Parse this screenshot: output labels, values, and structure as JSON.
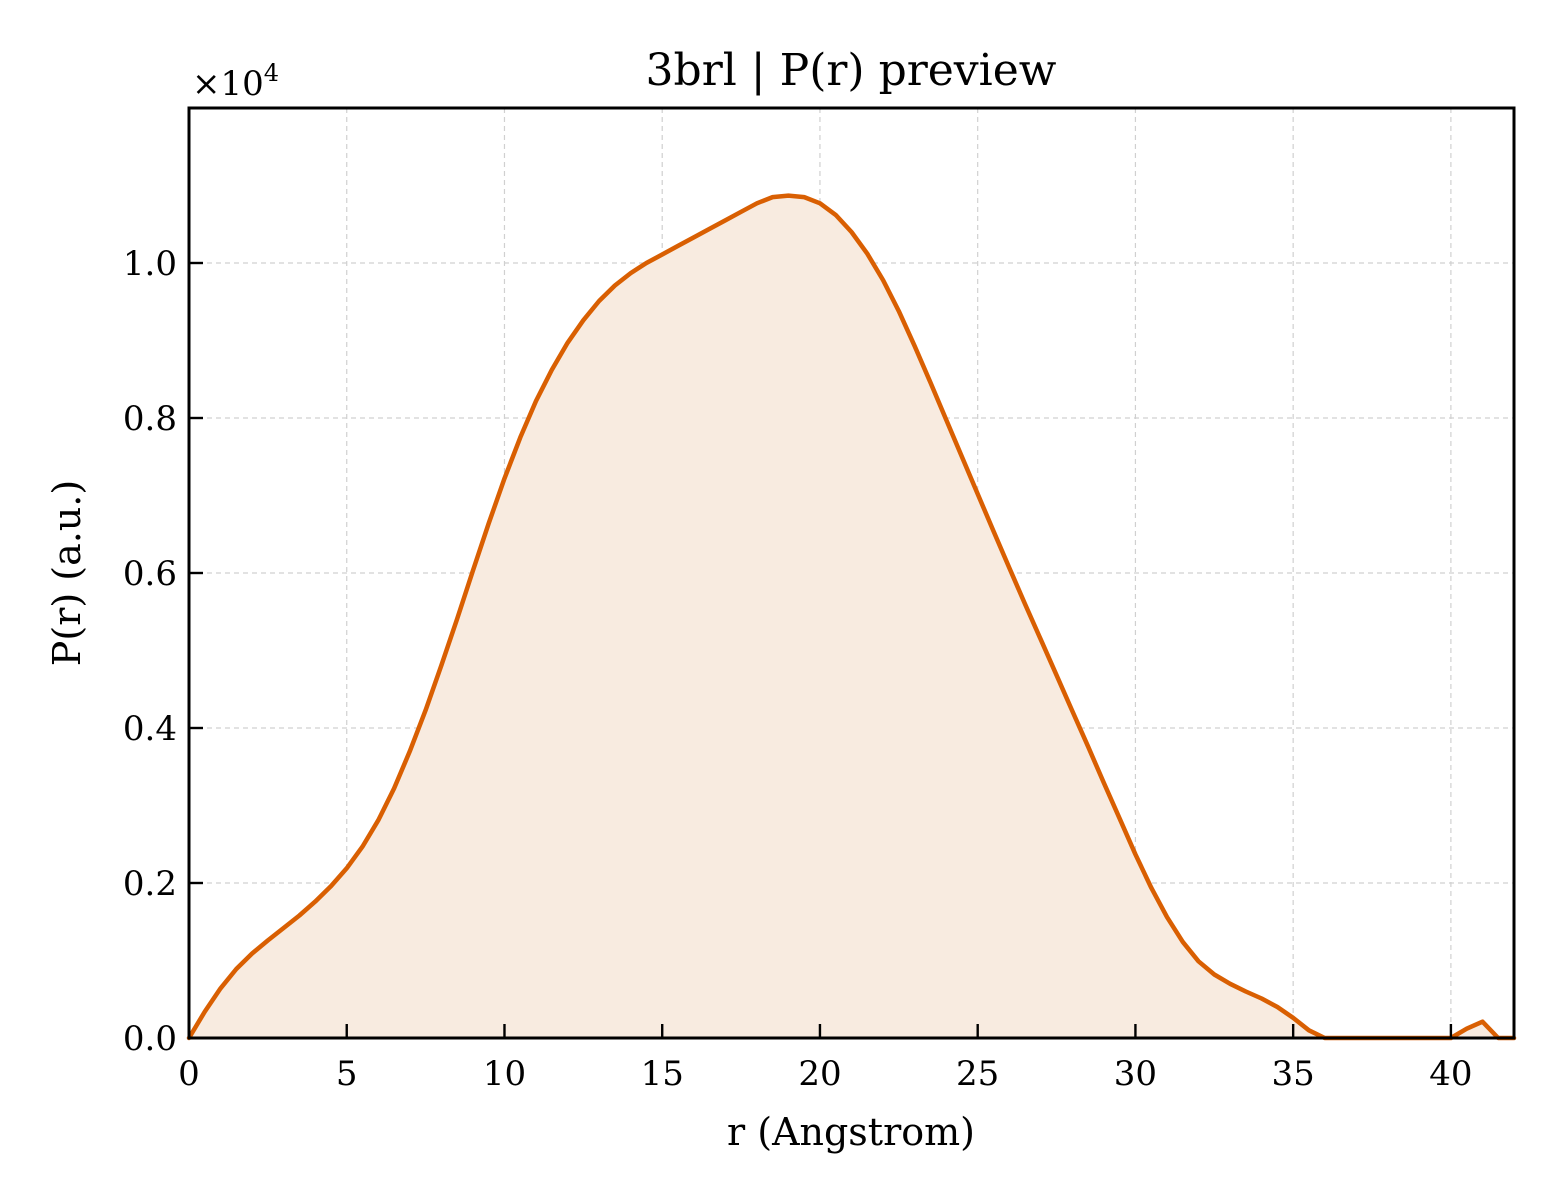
{
  "chart_data": {
    "type": "area",
    "title": "3brl | P(r) preview",
    "xlabel": "r (Angstrom)",
    "ylabel": "P(r) (a.u.)",
    "y_multiplier_label": "×10",
    "y_multiplier_exponent": "4",
    "xlim": [
      0,
      42
    ],
    "ylim": [
      0,
      1.2
    ],
    "x_ticks": [
      0,
      5,
      10,
      15,
      20,
      25,
      30,
      35,
      40
    ],
    "x_tick_labels": [
      "0",
      "5",
      "10",
      "15",
      "20",
      "25",
      "30",
      "35",
      "40"
    ],
    "y_ticks": [
      0,
      0.2,
      0.4,
      0.6,
      0.8,
      1.0
    ],
    "y_tick_labels": [
      "0.0",
      "0.2",
      "0.4",
      "0.6",
      "0.8",
      "1.0"
    ],
    "grid": true,
    "colors": {
      "line": "#d95f02",
      "fill": "#f8ebe0"
    },
    "series": [
      {
        "x": [
          0,
          0.5,
          1,
          1.5,
          2,
          2.5,
          3,
          3.5,
          4,
          4.5,
          5,
          5.5,
          6,
          6.5,
          7,
          7.5,
          8,
          8.5,
          9,
          9.5,
          10,
          10.5,
          11,
          11.5,
          12,
          12.5,
          13,
          13.5,
          14,
          14.5,
          15,
          15.5,
          16,
          16.5,
          17,
          17.5,
          18,
          18.5,
          19,
          19.5,
          20,
          20.5,
          21,
          21.5,
          22,
          22.5,
          23,
          23.5,
          24,
          24.5,
          25,
          25.5,
          26,
          26.5,
          27,
          27.5,
          28,
          28.5,
          29,
          29.5,
          30,
          30.5,
          31,
          31.5,
          32,
          32.5,
          33,
          33.5,
          34,
          34.5,
          35,
          35.5,
          36,
          36.5,
          37,
          37.5,
          38,
          38.5,
          39,
          39.5,
          40,
          40.5,
          41,
          41.5,
          42
        ],
        "values": [
          0.0,
          0.034,
          0.064,
          0.089,
          0.109,
          0.126,
          0.142,
          0.158,
          0.176,
          0.196,
          0.219,
          0.247,
          0.281,
          0.322,
          0.37,
          0.423,
          0.481,
          0.541,
          0.603,
          0.664,
          0.722,
          0.775,
          0.822,
          0.862,
          0.897,
          0.926,
          0.951,
          0.971,
          0.987,
          1.0,
          1.011,
          1.022,
          1.033,
          1.044,
          1.055,
          1.066,
          1.077,
          1.085,
          1.087,
          1.085,
          1.077,
          1.062,
          1.04,
          1.012,
          0.978,
          0.938,
          0.893,
          0.846,
          0.798,
          0.75,
          0.702,
          0.654,
          0.607,
          0.56,
          0.514,
          0.468,
          0.422,
          0.376,
          0.329,
          0.283,
          0.237,
          0.194,
          0.156,
          0.124,
          0.099,
          0.082,
          0.07,
          0.06,
          0.051,
          0.04,
          0.026,
          0.01,
          0.0,
          0.0,
          0.0,
          0.0,
          0.0,
          0.0,
          0.0,
          0.0,
          0.0,
          0.012,
          0.021,
          0.0,
          0.0
        ]
      }
    ]
  }
}
